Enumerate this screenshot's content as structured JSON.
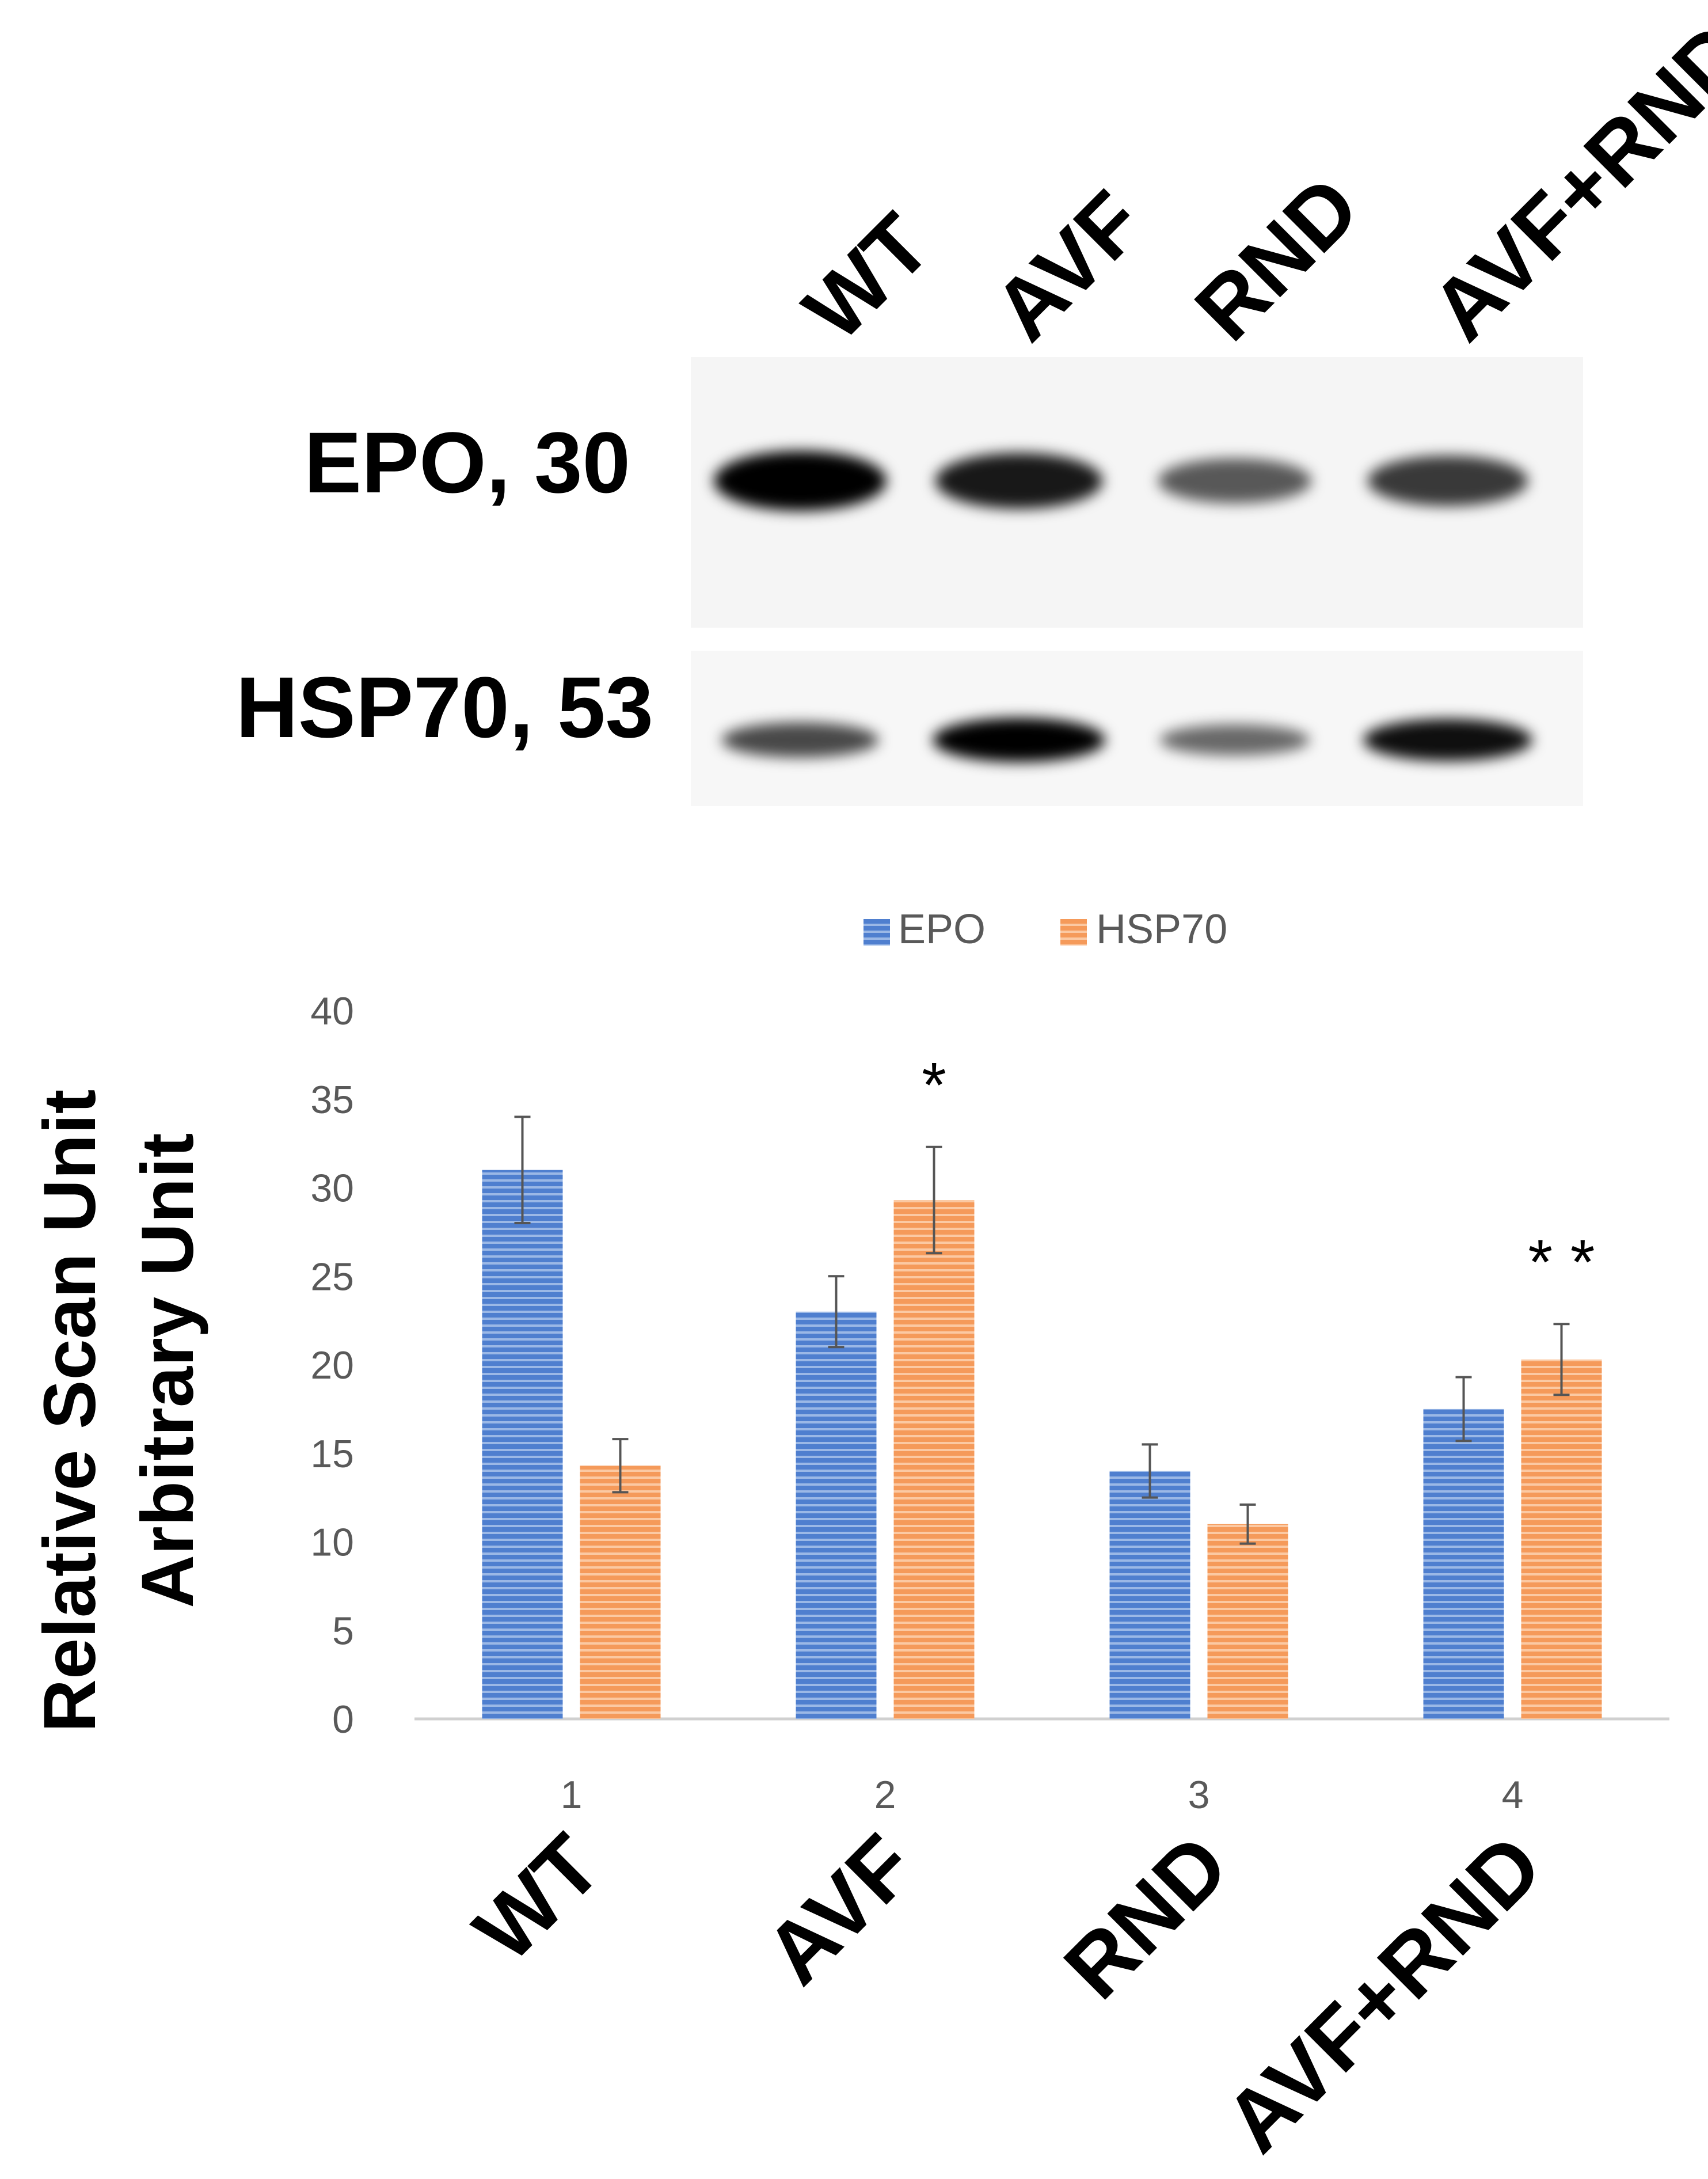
{
  "blot": {
    "lane_labels": [
      "WT",
      "AVF",
      "RND",
      "AVF+RND"
    ],
    "rows": [
      {
        "label": "EPO, 30",
        "band_intensity": [
          1.0,
          0.85,
          0.45,
          0.65
        ]
      },
      {
        "label": "HSP70, 53",
        "band_intensity": [
          0.55,
          1.0,
          0.35,
          0.9
        ]
      }
    ]
  },
  "chart_data": {
    "type": "bar",
    "categories": [
      "1",
      "2",
      "3",
      "4"
    ],
    "group_labels": [
      "WT",
      "AVF",
      "RND",
      "AVF+RND"
    ],
    "ylabel_lines": [
      "Relative Scan Unit",
      "Arbitrary Unit"
    ],
    "ylim": [
      0,
      40
    ],
    "yticks": [
      0,
      5,
      10,
      15,
      20,
      25,
      30,
      35,
      40
    ],
    "grid": false,
    "legend_position": "top-center",
    "series": [
      {
        "name": "EPO",
        "color": "#4F7FCF",
        "values": [
          31,
          23,
          14,
          17.5
        ],
        "errors": [
          3,
          2,
          1.5,
          1.8
        ]
      },
      {
        "name": "HSP70",
        "color": "#F59A5A",
        "values": [
          14.3,
          29.3,
          11,
          20.3
        ],
        "errors": [
          1.5,
          3,
          1.1,
          2
        ]
      }
    ],
    "annotations": [
      {
        "category_index": 1,
        "series_index": 1,
        "text": "*"
      },
      {
        "category_index": 3,
        "series_index": 1,
        "text": "* *"
      }
    ]
  }
}
